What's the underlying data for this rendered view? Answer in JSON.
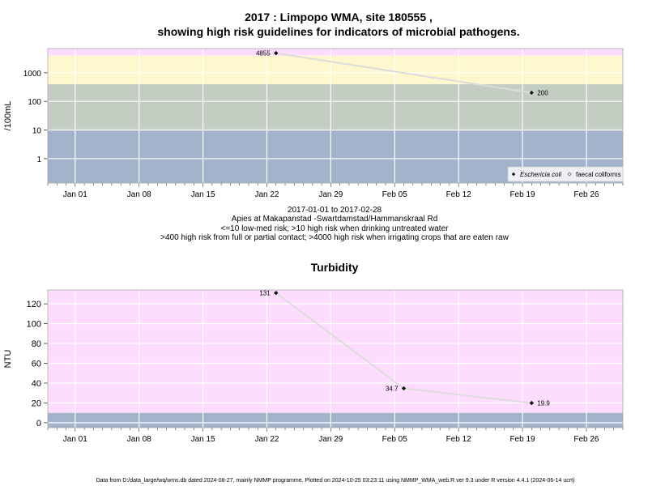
{
  "chart_data": [
    {
      "type": "line",
      "title_line1": "2017 : Limpopo WMA, site 180555 ,",
      "title_line2": "showing high risk guidelines for indicators of microbial pathogens.",
      "ylabel": "/100mL",
      "y_scale": "log",
      "ylim": [
        0.14,
        7000
      ],
      "yticks": [
        1,
        10,
        100,
        1000
      ],
      "ytick_labels": [
        "1",
        "10",
        "100",
        "1000"
      ],
      "x": [
        "2017-01-23",
        "2017-02-20"
      ],
      "xlim": [
        "2016-12-29",
        "2017-03-02"
      ],
      "xtick_labels": [
        "Jan 01",
        "Jan 08",
        "Jan 15",
        "Jan 22",
        "Jan 29",
        "Feb 05",
        "Feb 12",
        "Feb 19",
        "Feb 26"
      ],
      "series": [
        {
          "name": "Eschericia coli",
          "values": [
            4855,
            200
          ],
          "value_labels": [
            "4855",
            "200"
          ]
        }
      ],
      "legend_items": [
        "Eschericia coli",
        "faecal coliforms"
      ],
      "legend_placement": "bottom-right",
      "bands": [
        {
          "from": 0,
          "to": 10,
          "color": "#a2b3cb"
        },
        {
          "from": 10,
          "to": 400,
          "color": "#c3cdc2"
        },
        {
          "from": 400,
          "to": 4000,
          "color": "#fff7cd"
        },
        {
          "from": 4000,
          "to": 100000,
          "color": "#fddcfd"
        }
      ],
      "grid": true,
      "caption_lines": [
        "2017-01-01 to 2017-02-28",
        "Apies at Makapanstad -Swartdamstad/Hammanskraal Rd",
        "<=10 low-med risk; >10 high risk when drinking untreated water",
        ">400 high risk from full or partial contact; >4000 high risk when irrigating crops that are eaten raw"
      ]
    },
    {
      "type": "line",
      "title": "Turbidity",
      "ylabel": "NTU",
      "y_scale": "linear",
      "ylim": [
        -5,
        134
      ],
      "yticks": [
        0,
        20,
        40,
        60,
        80,
        100,
        120
      ],
      "ytick_labels": [
        "0",
        "20",
        "40",
        "60",
        "80",
        "100",
        "120"
      ],
      "x": [
        "2017-01-23",
        "2017-02-06",
        "2017-02-20"
      ],
      "xlim": [
        "2016-12-29",
        "2017-03-02"
      ],
      "xtick_labels": [
        "Jan 01",
        "Jan 08",
        "Jan 15",
        "Jan 22",
        "Jan 29",
        "Feb 05",
        "Feb 12",
        "Feb 19",
        "Feb 26"
      ],
      "series": [
        {
          "values": [
            131,
            34.7,
            19.9
          ],
          "value_labels": [
            "131",
            "34.7",
            "19.9"
          ]
        }
      ],
      "bands": [
        {
          "from": -100,
          "to": 10,
          "color": "#a2b3cb"
        },
        {
          "from": 10,
          "to": 1000,
          "color": "#fddcfd"
        }
      ],
      "grid": true
    }
  ],
  "footer": "Data from D:/data_large/wq/wms.db dated 2024-08-27, mainly NMMP programme. Plotted on 2024-10-25 03:23:11 using NMMP_WMA_web.R ver 9.3 under R version 4.4.1 (2024-06-14 ucrt)",
  "colors": {
    "line": "#dcdcdc",
    "point": "#111111",
    "grid": "#ffffff",
    "frame": "#aaaaaa"
  }
}
